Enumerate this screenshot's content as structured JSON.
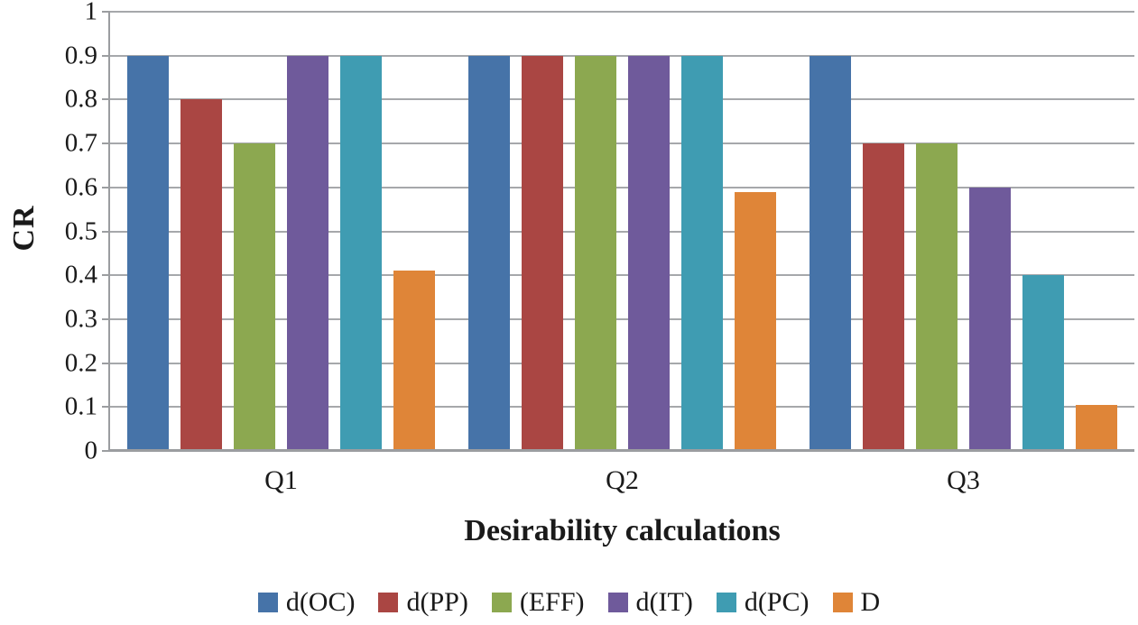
{
  "chart_data": {
    "type": "bar",
    "title": "",
    "xlabel": "Desirability calculations",
    "ylabel": "CR",
    "categories": [
      "Q1",
      "Q2",
      "Q3"
    ],
    "series": [
      {
        "name": "d(OC)",
        "color": "#4673A8",
        "values": [
          0.9,
          0.9,
          0.9
        ]
      },
      {
        "name": "d(PP)",
        "color": "#AA4643",
        "values": [
          0.8,
          0.9,
          0.7
        ]
      },
      {
        "name": "(EFF)",
        "color": "#8CA850",
        "values": [
          0.7,
          0.9,
          0.7
        ]
      },
      {
        "name": "d(IT)",
        "color": "#6F5A9B",
        "values": [
          0.9,
          0.9,
          0.6
        ]
      },
      {
        "name": "d(PC)",
        "color": "#3F9CB2",
        "values": [
          0.9,
          0.9,
          0.4
        ]
      },
      {
        "name": "D",
        "color": "#DF8538",
        "values": [
          0.41,
          0.59,
          0.105
        ]
      }
    ],
    "ylim": [
      0,
      1
    ],
    "ytick_labels": [
      "0",
      "0.1",
      "0.2",
      "0.3",
      "0.4",
      "0.5",
      "0.6",
      "0.7",
      "0.8",
      "0.9",
      "1"
    ],
    "grid": "horizontal",
    "legend_position": "bottom",
    "gridline_color": "#A6A8AB",
    "axis_color": "#9B9DA0",
    "text_color": "#1A1A1A",
    "background": "#FFFFFF"
  }
}
